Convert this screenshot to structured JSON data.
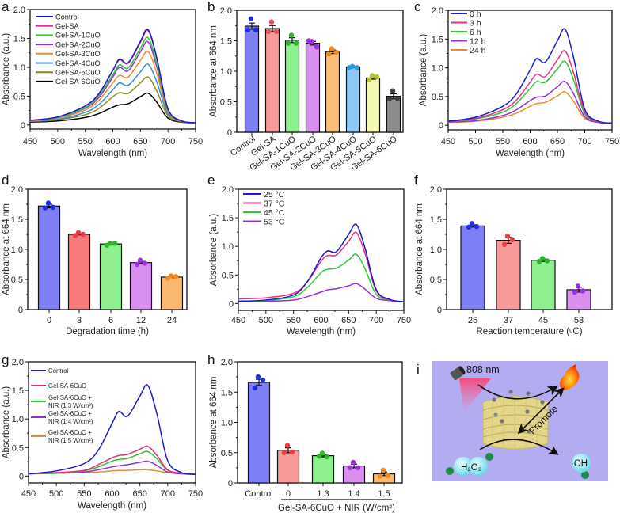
{
  "chart_data": [
    {
      "panel": "a",
      "type": "line",
      "xlabel": "Wavelength (nm)",
      "ylabel": "Absorbance (a.u.)",
      "xlim": [
        450,
        750
      ],
      "ylim": [
        -0.07,
        2.0
      ],
      "xticks": [
        "450",
        "500",
        "550",
        "600",
        "650",
        "700",
        "750"
      ],
      "yticks": [
        "0",
        "0.5",
        "1.0",
        "1.5",
        "2.0"
      ],
      "legend": "top-left",
      "x": [
        450,
        500,
        550,
        575,
        600,
        612,
        628,
        650,
        664,
        680,
        700,
        725,
        750
      ],
      "series": [
        {
          "name": "Control",
          "color": "#1a1acc",
          "values": [
            0.08,
            0.14,
            0.33,
            0.55,
            0.95,
            1.14,
            1.08,
            1.45,
            1.65,
            1.15,
            0.28,
            0.07,
            0.04
          ]
        },
        {
          "name": "Gel-SA",
          "color": "#e8308a",
          "values": [
            0.08,
            0.14,
            0.33,
            0.54,
            0.94,
            1.13,
            1.07,
            1.43,
            1.63,
            1.14,
            0.28,
            0.07,
            0.04
          ]
        },
        {
          "name": "Gel-SA-1CuO",
          "color": "#2ccc2c",
          "values": [
            0.08,
            0.13,
            0.3,
            0.51,
            0.87,
            1.04,
            0.99,
            1.33,
            1.51,
            1.05,
            0.26,
            0.07,
            0.04
          ]
        },
        {
          "name": "Gel-SA-2CuO",
          "color": "#9030e0",
          "values": [
            0.08,
            0.13,
            0.29,
            0.48,
            0.83,
            1.0,
            0.94,
            1.27,
            1.44,
            1.0,
            0.25,
            0.07,
            0.04
          ]
        },
        {
          "name": "Gel-SA-3CuO",
          "color": "#f08a30",
          "values": [
            0.07,
            0.12,
            0.26,
            0.43,
            0.73,
            0.86,
            0.83,
            1.12,
            1.27,
            0.89,
            0.22,
            0.06,
            0.04
          ]
        },
        {
          "name": "Gel-SA-4CuO",
          "color": "#3090e0",
          "values": [
            0.07,
            0.1,
            0.22,
            0.36,
            0.61,
            0.73,
            0.69,
            0.92,
            1.05,
            0.74,
            0.19,
            0.06,
            0.04
          ]
        },
        {
          "name": "Gel-SA-5CuO",
          "color": "#8a8a20",
          "values": [
            0.06,
            0.09,
            0.18,
            0.29,
            0.49,
            0.56,
            0.55,
            0.73,
            0.83,
            0.58,
            0.16,
            0.06,
            0.04
          ]
        },
        {
          "name": "Gel-SA-6CuO",
          "color": "#000000",
          "values": [
            0.05,
            0.07,
            0.13,
            0.2,
            0.31,
            0.35,
            0.37,
            0.49,
            0.55,
            0.39,
            0.12,
            0.05,
            0.04
          ]
        }
      ]
    },
    {
      "panel": "b",
      "type": "bar",
      "ylabel": "Absorbance at 664 nm",
      "ylim": [
        0,
        2.0
      ],
      "yticks": [
        "0",
        "0.5",
        "1.0",
        "1.5",
        "2.0"
      ],
      "categories": [
        "Control",
        "Gel-SA",
        "Gel-SA-1CuO",
        "Gel-SA-2CuO",
        "Gel-SA-3CuO",
        "Gel-SA-4CuO",
        "Gel-SA-5CuO",
        "Gel-SA-6CuO"
      ],
      "values": [
        1.74,
        1.7,
        1.51,
        1.46,
        1.32,
        1.07,
        0.89,
        0.59
      ],
      "errors": [
        0.05,
        0.05,
        0.04,
        0.03,
        0.03,
        0.01,
        0.02,
        0.04
      ],
      "points": [
        [
          1.86,
          1.68,
          1.68
        ],
        [
          1.81,
          1.65,
          1.65
        ],
        [
          1.59,
          1.46,
          1.46
        ],
        [
          1.49,
          1.5,
          1.4
        ],
        [
          1.37,
          1.28,
          1.31
        ],
        [
          1.08,
          1.06,
          1.06
        ],
        [
          0.93,
          0.86,
          0.91
        ],
        [
          0.68,
          0.55,
          0.55
        ]
      ],
      "bar_colors": [
        "#7f7ff5",
        "#f79a9a",
        "#8ef08e",
        "#d98ff0",
        "#fbbd7a",
        "#8ec8f5",
        "#f3f8b0",
        "#8c8c8c"
      ],
      "point_colors": [
        "#1f2fe0",
        "#e84a5a",
        "#2cb52c",
        "#9a2ee0",
        "#f08a20",
        "#2a9ad8",
        "#b8c030",
        "#404040"
      ]
    },
    {
      "panel": "c",
      "type": "line",
      "xlabel": "Wavelength (nm)",
      "ylabel": "Absorbance (a.u.)",
      "xlim": [
        450,
        750
      ],
      "ylim": [
        -0.08,
        2.0
      ],
      "xticks": [
        "450",
        "500",
        "550",
        "600",
        "650",
        "700",
        "750"
      ],
      "yticks": [
        "0",
        "0.5",
        "1.0",
        "1.5",
        "2.0"
      ],
      "legend": "top-left",
      "x": [
        450,
        500,
        550,
        575,
        600,
        612,
        628,
        650,
        664,
        680,
        700,
        725,
        750
      ],
      "series": [
        {
          "name": "0 h",
          "color": "#1a1acc",
          "values": [
            0.07,
            0.14,
            0.33,
            0.55,
            0.96,
            1.16,
            1.1,
            1.47,
            1.67,
            1.16,
            0.28,
            0.07,
            0.04
          ]
        },
        {
          "name": "3 h",
          "color": "#e8308a",
          "values": [
            0.07,
            0.12,
            0.27,
            0.44,
            0.75,
            0.89,
            0.85,
            1.14,
            1.29,
            0.9,
            0.23,
            0.06,
            0.04
          ]
        },
        {
          "name": "6 h",
          "color": "#2ccc2c",
          "values": [
            0.07,
            0.11,
            0.23,
            0.38,
            0.64,
            0.76,
            0.75,
            0.98,
            1.11,
            0.78,
            0.2,
            0.06,
            0.04
          ]
        },
        {
          "name": "12 h",
          "color": "#9030e0",
          "values": [
            0.06,
            0.08,
            0.17,
            0.27,
            0.43,
            0.49,
            0.51,
            0.67,
            0.76,
            0.54,
            0.15,
            0.05,
            0.04
          ]
        },
        {
          "name": "24 h",
          "color": "#f08a30",
          "values": [
            0.05,
            0.07,
            0.14,
            0.21,
            0.33,
            0.38,
            0.4,
            0.51,
            0.58,
            0.41,
            0.12,
            0.05,
            0.04
          ]
        }
      ]
    },
    {
      "panel": "d",
      "type": "bar",
      "xlabel": "Degradation time (h)",
      "ylabel": "Absorbance at 664 nm",
      "ylim": [
        0,
        2.0
      ],
      "yticks": [
        "0",
        "0.5",
        "1.0",
        "1.5",
        "2.0"
      ],
      "categories": [
        "0",
        "3",
        "6",
        "12",
        "24"
      ],
      "values": [
        1.72,
        1.25,
        1.09,
        0.78,
        0.54
      ],
      "errors": [
        0.03,
        0.01,
        0.01,
        0.02,
        0.01
      ],
      "points": [
        [
          1.77,
          1.69,
          1.7
        ],
        [
          1.28,
          1.23,
          1.25
        ],
        [
          1.1,
          1.07,
          1.1
        ],
        [
          0.82,
          0.75,
          0.77
        ],
        [
          0.56,
          0.52,
          0.55
        ]
      ],
      "bar_colors": [
        "#7f7ff5",
        "#f77a7a",
        "#8ef08e",
        "#d98ff0",
        "#fbb870"
      ],
      "point_colors": [
        "#1f2fe0",
        "#e84040",
        "#2cb52c",
        "#a030e0",
        "#f08a20"
      ]
    },
    {
      "panel": "e",
      "type": "line",
      "xlabel": "Wavelength (nm)",
      "ylabel": "Absorbance (a.u.)",
      "xlim": [
        450,
        750
      ],
      "ylim": [
        -0.12,
        2.0
      ],
      "xticks": [
        "450",
        "500",
        "550",
        "600",
        "650",
        "700",
        "750"
      ],
      "yticks": [
        "0",
        "0.5",
        "1.0",
        "1.5",
        "2.0"
      ],
      "legend": "top-left",
      "x": [
        450,
        500,
        550,
        575,
        600,
        612,
        628,
        650,
        664,
        680,
        700,
        725,
        750
      ],
      "series": [
        {
          "name": "25 °C",
          "color": "#1a1acc",
          "values": [
            0.04,
            0.06,
            0.15,
            0.38,
            0.8,
            0.92,
            0.91,
            1.21,
            1.38,
            0.96,
            0.24,
            0.07,
            0.03
          ]
        },
        {
          "name": "37 °C",
          "color": "#e8308a",
          "values": [
            0.08,
            0.1,
            0.18,
            0.38,
            0.74,
            0.84,
            0.85,
            1.09,
            1.24,
            0.87,
            0.22,
            0.06,
            0.03
          ]
        },
        {
          "name": "45 °C",
          "color": "#2ccc2c",
          "values": [
            0.04,
            0.05,
            0.12,
            0.28,
            0.54,
            0.6,
            0.62,
            0.76,
            0.86,
            0.6,
            0.16,
            0.06,
            0.03
          ]
        },
        {
          "name": "53 °C",
          "color": "#9030e0",
          "values": [
            0.03,
            0.04,
            0.06,
            0.12,
            0.2,
            0.24,
            0.26,
            0.31,
            0.35,
            0.25,
            0.09,
            0.05,
            0.03
          ]
        }
      ]
    },
    {
      "panel": "f",
      "type": "bar",
      "xlabel": "Reaction temperature (ᵒC)",
      "ylabel": "Absorbance at 664 nm",
      "ylim": [
        0,
        2.0
      ],
      "yticks": [
        "0",
        "0.5",
        "1.0",
        "1.5",
        "2.0"
      ],
      "categories": [
        "25",
        "37",
        "45",
        "53"
      ],
      "values": [
        1.39,
        1.15,
        0.82,
        0.33
      ],
      "errors": [
        0.02,
        0.05,
        0.02,
        0.04
      ],
      "points": [
        [
          1.43,
          1.37,
          1.38
        ],
        [
          1.22,
          1.08,
          1.16
        ],
        [
          0.85,
          0.8,
          0.81
        ],
        [
          0.39,
          0.29,
          0.31
        ]
      ],
      "bar_colors": [
        "#7f7ff5",
        "#f79a9a",
        "#8ef08e",
        "#d98ff0"
      ],
      "point_colors": [
        "#1f2fe0",
        "#e84040",
        "#2cb52c",
        "#a030e0"
      ]
    },
    {
      "panel": "g",
      "type": "line",
      "xlabel": "Wavelength (nm)",
      "ylabel": "Absorbance (a.u.)",
      "xlim": [
        450,
        750
      ],
      "ylim": [
        -0.12,
        2.0
      ],
      "xticks": [
        "450",
        "500",
        "550",
        "600",
        "650",
        "700",
        "750"
      ],
      "yticks": [
        "0",
        "0.5",
        "1.0",
        "1.5",
        "2.0"
      ],
      "legend": "top-left",
      "x": [
        450,
        500,
        550,
        575,
        600,
        612,
        628,
        650,
        664,
        680,
        700,
        725,
        750
      ],
      "series": [
        {
          "label": [
            "Control"
          ],
          "color": "#1a1acc",
          "values": [
            0.04,
            0.09,
            0.22,
            0.45,
            0.92,
            1.13,
            1.05,
            1.4,
            1.59,
            1.11,
            0.27,
            0.06,
            0.03
          ]
        },
        {
          "label": [
            "Gel-SA-6CuO"
          ],
          "color": "#e0307a",
          "values": [
            0.04,
            0.06,
            0.1,
            0.2,
            0.32,
            0.36,
            0.38,
            0.47,
            0.52,
            0.37,
            0.11,
            0.05,
            0.03
          ]
        },
        {
          "label": [
            "Gel-SA-6CuO +",
            "NIR (1.3 W/cm²)"
          ],
          "color": "#30c030",
          "values": [
            0.04,
            0.05,
            0.09,
            0.16,
            0.26,
            0.29,
            0.31,
            0.39,
            0.43,
            0.31,
            0.1,
            0.05,
            0.03
          ]
        },
        {
          "label": [
            "Gel-SA-6CuO +",
            "NIR (1.4 W/cm²)"
          ],
          "color": "#9030e0",
          "values": [
            0.04,
            0.05,
            0.07,
            0.11,
            0.16,
            0.18,
            0.2,
            0.24,
            0.26,
            0.19,
            0.07,
            0.04,
            0.03
          ]
        },
        {
          "label": [
            "Gel-SA-6CuO +",
            "NIR (1.5 W/cm²)"
          ],
          "color": "#f08a30",
          "values": [
            0.04,
            0.05,
            0.06,
            0.07,
            0.09,
            0.1,
            0.1,
            0.11,
            0.11,
            0.09,
            0.06,
            0.04,
            0.04
          ]
        }
      ]
    },
    {
      "panel": "h",
      "type": "bar",
      "xlabel": "Gel-SA-6CuO + NIR (W/cm²)",
      "ylabel": "Absorbance at 664 nm",
      "ylim": [
        0,
        2.0
      ],
      "yticks": [
        "0",
        "0.5",
        "1.0",
        "1.5",
        "2.0"
      ],
      "categories": [
        "Control",
        "0",
        "1.3",
        "1.4",
        "1.5"
      ],
      "values": [
        1.66,
        0.54,
        0.45,
        0.28,
        0.15
      ],
      "errors": [
        0.05,
        0.04,
        0.02,
        0.03,
        0.03
      ],
      "points": [
        [
          1.75,
          1.57,
          1.7
        ],
        [
          0.62,
          0.5,
          0.51
        ],
        [
          0.49,
          0.44,
          0.43
        ],
        [
          0.34,
          0.25,
          0.25
        ],
        [
          0.21,
          0.11,
          0.12
        ]
      ],
      "bar_colors": [
        "#7f7ff5",
        "#f79a9a",
        "#8ef08e",
        "#d98ff0",
        "#fbb870"
      ],
      "point_colors": [
        "#1f2fe0",
        "#e84040",
        "#2cb52c",
        "#a030e0",
        "#f08a20"
      ]
    }
  ],
  "illustration": {
    "panel": "i",
    "laser_label": "808 nm",
    "promote_label": "Promote",
    "h2o2_label": "H₂O₂",
    "oh_label": "·OH",
    "background_color": "#b4acf0"
  }
}
